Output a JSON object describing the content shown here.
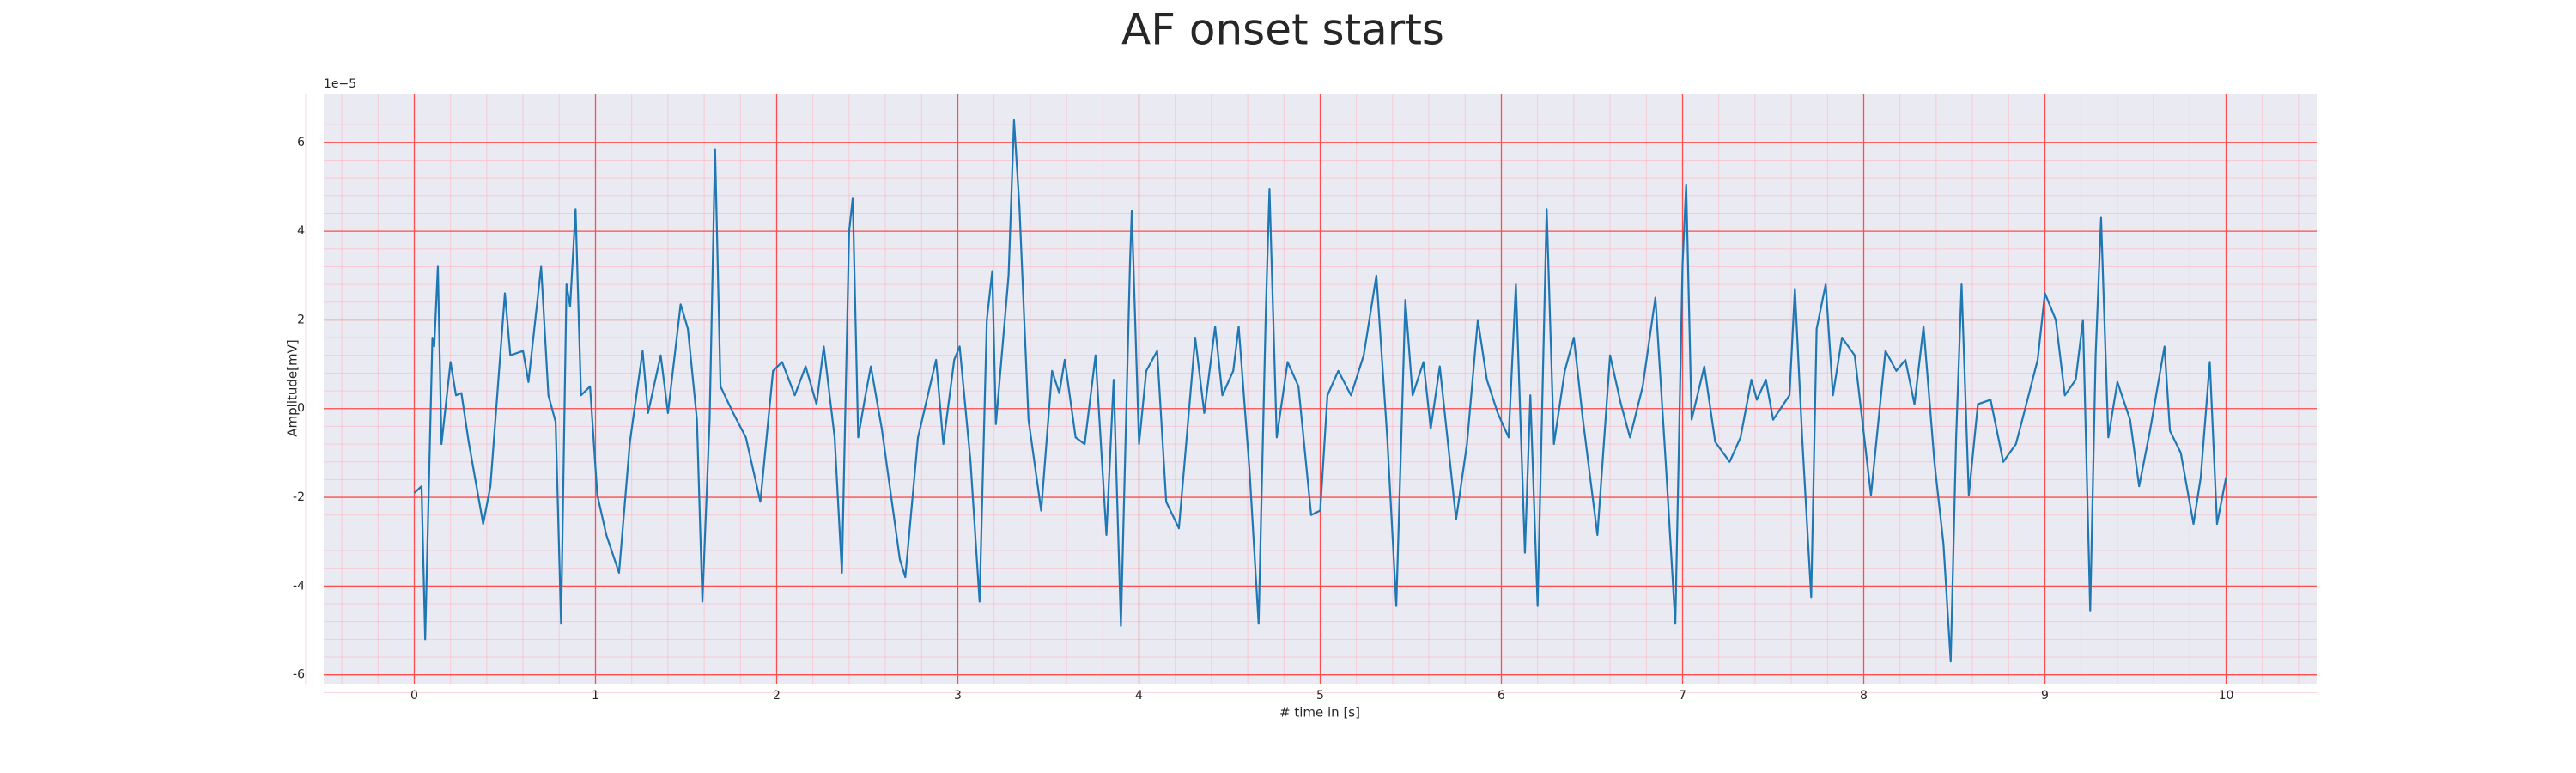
{
  "chart_data": {
    "type": "line",
    "title": "AF onset starts",
    "x_label": "# time in [s]",
    "y_label": "Amplitude[mV]",
    "y_offset_label": "1e−5",
    "color": "#1f77b4",
    "grid": true,
    "minor_grid": true,
    "xlim": [
      -0.5,
      10.5
    ],
    "ylim": [
      -6.2,
      7.1
    ],
    "xticks": [
      0,
      1,
      2,
      3,
      4,
      5,
      6,
      7,
      8,
      9,
      10
    ],
    "yticks": [
      -6,
      -4,
      -2,
      0,
      2,
      4,
      6
    ],
    "x": [
      0,
      0.04,
      0.06,
      0.1,
      0.11,
      0.13,
      0.15,
      0.2,
      0.23,
      0.26,
      0.3,
      0.38,
      0.42,
      0.5,
      0.53,
      0.6,
      0.63,
      0.7,
      0.74,
      0.78,
      0.81,
      0.84,
      0.86,
      0.89,
      0.92,
      0.97,
      1.01,
      1.06,
      1.13,
      1.19,
      1.26,
      1.29,
      1.36,
      1.4,
      1.47,
      1.51,
      1.56,
      1.59,
      1.63,
      1.66,
      1.69,
      1.76,
      1.83,
      1.91,
      1.98,
      2.03,
      2.1,
      2.16,
      2.22,
      2.26,
      2.32,
      2.36,
      2.4,
      2.42,
      2.45,
      2.49,
      2.52,
      2.58,
      2.68,
      2.71,
      2.78,
      2.88,
      2.92,
      2.98,
      3.01,
      3.07,
      3.12,
      3.16,
      3.19,
      3.21,
      3.28,
      3.31,
      3.34,
      3.39,
      3.46,
      3.52,
      3.56,
      3.59,
      3.65,
      3.7,
      3.76,
      3.82,
      3.86,
      3.9,
      3.95,
      3.96,
      4,
      4.04,
      4.1,
      4.15,
      4.22,
      4.26,
      4.31,
      4.36,
      4.42,
      4.46,
      4.52,
      4.55,
      4.61,
      4.66,
      4.7,
      4.72,
      4.76,
      4.82,
      4.88,
      4.95,
      5,
      5.04,
      5.1,
      5.17,
      5.24,
      5.31,
      5.37,
      5.42,
      5.47,
      5.51,
      5.57,
      5.61,
      5.66,
      5.75,
      5.81,
      5.87,
      5.92,
      5.98,
      6.04,
      6.08,
      6.13,
      6.16,
      6.2,
      6.24,
      6.25,
      6.29,
      6.35,
      6.4,
      6.45,
      6.53,
      6.6,
      6.66,
      6.71,
      6.78,
      6.85,
      6.91,
      6.96,
      7,
      7.02,
      7.05,
      7.12,
      7.18,
      7.26,
      7.32,
      7.38,
      7.41,
      7.46,
      7.5,
      7.59,
      7.62,
      7.66,
      7.71,
      7.74,
      7.79,
      7.83,
      7.88,
      7.95,
      8.04,
      8.12,
      8.18,
      8.23,
      8.28,
      8.33,
      8.39,
      8.44,
      8.48,
      8.51,
      8.54,
      8.58,
      8.63,
      8.7,
      8.77,
      8.84,
      8.91,
      8.96,
      9,
      9.06,
      9.11,
      9.17,
      9.21,
      9.25,
      9.28,
      9.31,
      9.35,
      9.4,
      9.47,
      9.52,
      9.58,
      9.66,
      9.69,
      9.75,
      9.82,
      9.86,
      9.91,
      9.95,
      10
    ],
    "values": [
      -1.9,
      -1.75,
      -5.2,
      1.6,
      1.4,
      3.2,
      -0.8,
      1.05,
      0.3,
      0.35,
      -0.75,
      -2.6,
      -1.75,
      2.6,
      1.2,
      1.3,
      0.6,
      3.2,
      0.3,
      -0.3,
      -4.85,
      2.8,
      2.3,
      4.5,
      0.3,
      0.5,
      -1.95,
      -2.85,
      -3.7,
      -0.75,
      1.3,
      -0.1,
      1.2,
      -0.1,
      2.35,
      1.8,
      -0.25,
      -4.35,
      -0.25,
      5.85,
      0.5,
      -0.1,
      -0.65,
      -2.1,
      0.85,
      1.05,
      0.3,
      0.95,
      0.1,
      1.4,
      -0.65,
      -3.7,
      4.0,
      4.75,
      -0.65,
      0.3,
      0.95,
      -0.45,
      -3.4,
      -3.8,
      -0.65,
      1.1,
      -0.8,
      1.1,
      1.4,
      -1.2,
      -4.35,
      2.0,
      3.1,
      -0.35,
      3.0,
      6.5,
      4.55,
      -0.25,
      -2.3,
      0.85,
      0.35,
      1.1,
      -0.65,
      -0.8,
      1.2,
      -2.85,
      0.65,
      -4.9,
      3.25,
      4.45,
      -0.8,
      0.85,
      1.3,
      -2.1,
      -2.7,
      -0.8,
      1.6,
      -0.1,
      1.85,
      0.3,
      0.85,
      1.85,
      -1.4,
      -4.85,
      2.2,
      4.95,
      -0.65,
      1.05,
      0.5,
      -2.4,
      -2.3,
      0.3,
      0.85,
      0.3,
      1.2,
      3.0,
      -0.65,
      -4.45,
      2.45,
      0.3,
      1.05,
      -0.45,
      0.95,
      -2.5,
      -0.8,
      2.0,
      0.65,
      -0.1,
      -0.65,
      2.8,
      -3.25,
      0.3,
      -4.45,
      2.7,
      4.5,
      -0.8,
      0.85,
      1.6,
      -0.25,
      -2.85,
      1.2,
      0.1,
      -0.65,
      0.5,
      2.5,
      -1.4,
      -4.85,
      3.25,
      5.05,
      -0.25,
      0.95,
      -0.75,
      -1.2,
      -0.65,
      0.65,
      0.2,
      0.65,
      -0.25,
      0.3,
      2.7,
      -0.65,
      -4.25,
      1.8,
      2.8,
      0.3,
      1.6,
      1.2,
      -1.95,
      1.3,
      0.85,
      1.1,
      0.1,
      1.85,
      -1.2,
      -3.05,
      -5.7,
      -0.65,
      2.8,
      -1.95,
      0.1,
      0.2,
      -1.2,
      -0.8,
      0.3,
      1.1,
      2.6,
      2.0,
      0.3,
      0.65,
      2.0,
      -4.55,
      1.2,
      4.3,
      -0.65,
      0.6,
      -0.25,
      -1.75,
      -0.5,
      1.4,
      -0.5,
      -1.0,
      -2.6,
      -1.55,
      1.05,
      -2.6,
      -1.55
    ]
  }
}
